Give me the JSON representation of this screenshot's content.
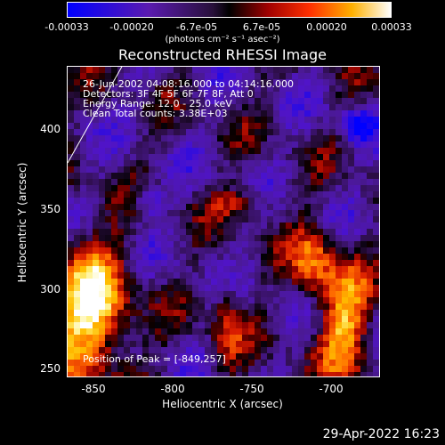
{
  "colorbar": {
    "ticks": [
      "-0.00033",
      "-0.00020",
      "-6.7e-05",
      "6.7e-05",
      "0.00020",
      "0.00033"
    ],
    "units": "(photons cm⁻² s⁻¹ asec⁻²)"
  },
  "title": "Reconstructed RHESSI Image",
  "annotations": {
    "time": "26-Jun-2002 04:08:16.000 to 04:14:16.000",
    "detectors": "Detectors: 3F 4F 5F 6F 7F 8F, Att 0",
    "energy": "Energy Range: 12.0 - 25.0 keV",
    "clean": "Clean     Total counts: 3.38E+03",
    "peak": "Position of Peak = [-849,257]"
  },
  "axes": {
    "xlabel": "Heliocentric X (arcsec)",
    "ylabel": "Heliocentric Y (arcsec)",
    "xticks": [
      "-850",
      "-800",
      "-750",
      "-700"
    ],
    "yticks": [
      "400",
      "350",
      "300",
      "250"
    ]
  },
  "footer": {
    "timestamp": "29-Apr-2022 16:23"
  }
}
